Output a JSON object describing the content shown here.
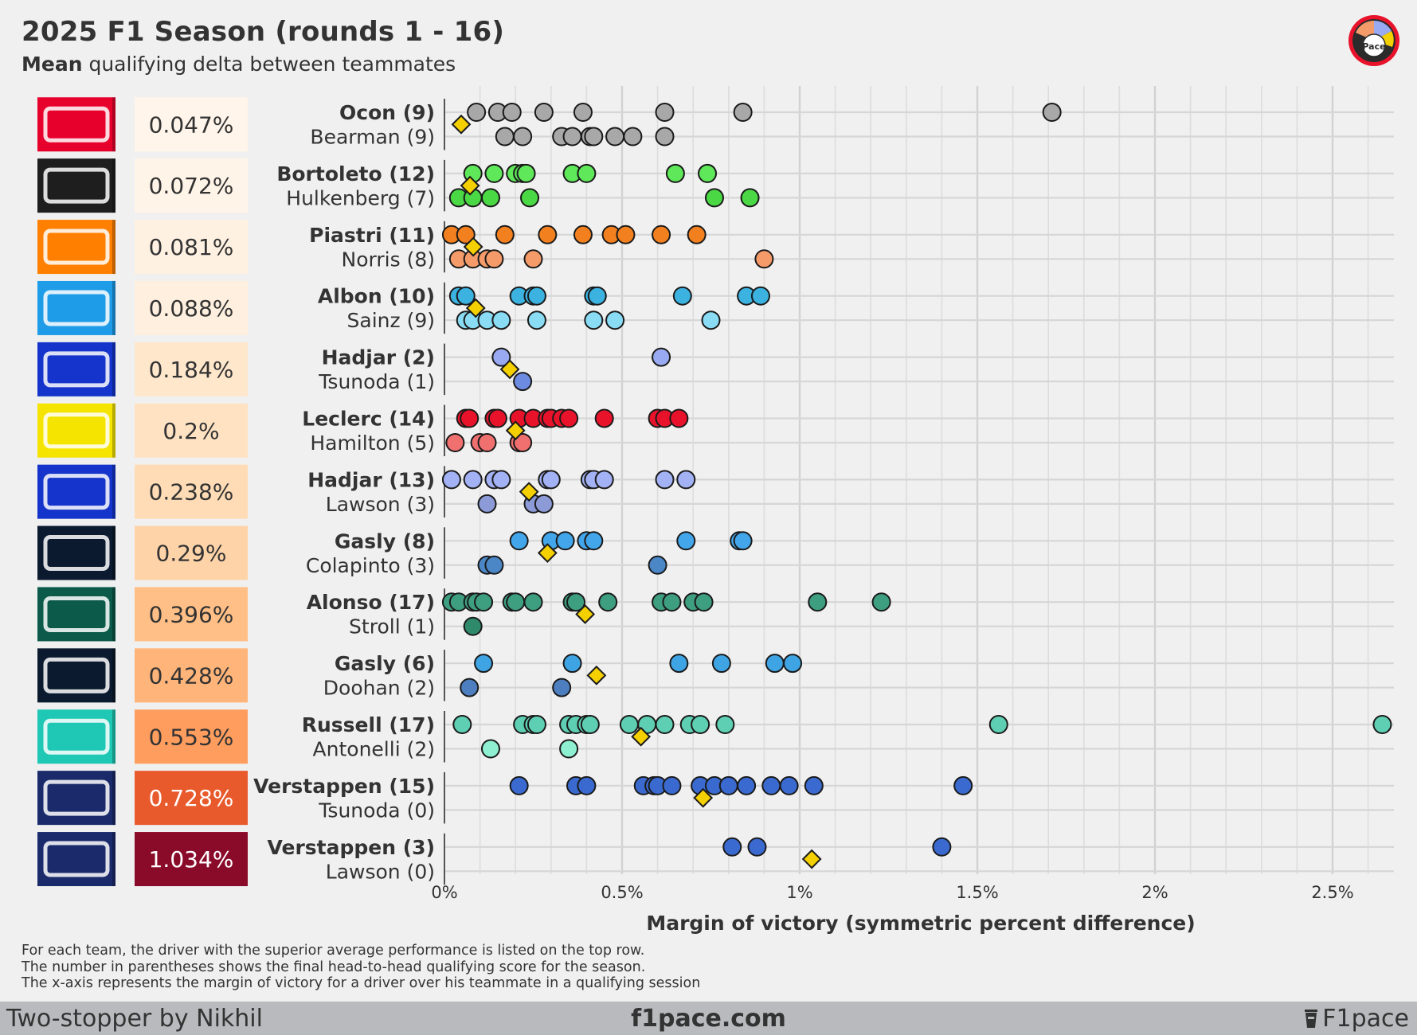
{
  "header": {
    "title": "2025 F1 Season (rounds 1 - 16)",
    "subtitle_bold": "Mean",
    "subtitle_rest": "qualifying delta between teammates"
  },
  "logo_badge": {
    "text": "Pace",
    "icon": "f1pace-logo-icon"
  },
  "footnotes": [
    "For each team, the driver with the superior average performance is listed on the top row.",
    "The number in parentheses shows the final head-to-head qualifying score for the season.",
    "The x-axis represents the margin of victory for a driver over his teammate in a qualifying session"
  ],
  "footer": {
    "left": "Two-stopper by Nikhil",
    "center": "f1pace.com",
    "right": "F1pace"
  },
  "chart_data": {
    "type": "scatter",
    "title": "2025 F1 Season (rounds 1 - 16)",
    "subtitle": "Mean qualifying delta between teammates",
    "xlabel": "Margin of victory (symmetric percent difference)",
    "xlim": [
      0,
      2.68
    ],
    "xticks": [
      0,
      0.5,
      1,
      1.5,
      2,
      2.5
    ],
    "xtick_labels": [
      "0%",
      "0.5%",
      "1%",
      "1.5%",
      "2%",
      "2.5%"
    ],
    "grid": true,
    "mean_marker": "diamond",
    "mean_color": "#f5d000",
    "pairs": [
      {
        "team": "Haas",
        "logo": "haas-logo-icon",
        "logo_bg": "#e8002d",
        "mean_label": "0.047%",
        "mean": 0.047,
        "badge_color": "#fff5ea",
        "badge_text": "#333333",
        "top": {
          "label": "Ocon (9)",
          "color": "#a8a8a8",
          "values": [
            0.09,
            0.15,
            0.19,
            0.28,
            0.39,
            0.62,
            0.84,
            1.71
          ]
        },
        "bottom": {
          "label": "Bearman (9)",
          "color": "#a8a8a8",
          "values": [
            0.17,
            0.22,
            0.33,
            0.36,
            0.41,
            0.42,
            0.48,
            0.53,
            0.62
          ]
        }
      },
      {
        "team": "Sauber",
        "logo": "sauber-logo-icon",
        "logo_bg": "#1e1e1e",
        "mean_label": "0.072%",
        "mean": 0.072,
        "badge_color": "#fff4e8",
        "badge_text": "#333333",
        "top": {
          "label": "Bortoleto (12)",
          "color": "#5fe85a",
          "values": [
            0.08,
            0.14,
            0.2,
            0.22,
            0.23,
            0.36,
            0.4,
            0.65,
            0.74
          ]
        },
        "bottom": {
          "label": "Hulkenberg (7)",
          "color": "#4ad845",
          "values": [
            0.04,
            0.08,
            0.13,
            0.24,
            0.76,
            0.86
          ]
        }
      },
      {
        "team": "McLaren",
        "logo": "mclaren-logo-icon",
        "logo_bg": "#ff8000",
        "mean_label": "0.081%",
        "mean": 0.081,
        "badge_color": "#fff1e2",
        "badge_text": "#333333",
        "top": {
          "label": "Piastri (11)",
          "color": "#f2801e",
          "values": [
            0.02,
            0.06,
            0.17,
            0.29,
            0.39,
            0.47,
            0.51,
            0.61,
            0.71
          ]
        },
        "bottom": {
          "label": "Norris (8)",
          "color": "#f59b6a",
          "values": [
            0.04,
            0.08,
            0.12,
            0.14,
            0.25,
            0.9
          ]
        }
      },
      {
        "team": "Williams",
        "logo": "williams-logo-icon",
        "logo_bg": "#1e9ce8",
        "mean_label": "0.088%",
        "mean": 0.088,
        "badge_color": "#ffefde",
        "badge_text": "#333333",
        "top": {
          "label": "Albon (10)",
          "color": "#3bb2e0",
          "values": [
            0.04,
            0.06,
            0.21,
            0.25,
            0.26,
            0.42,
            0.43,
            0.67,
            0.85,
            0.89
          ]
        },
        "bottom": {
          "label": "Sainz (9)",
          "color": "#8adcf5",
          "values": [
            0.06,
            0.08,
            0.12,
            0.16,
            0.26,
            0.42,
            0.48,
            0.75
          ]
        }
      },
      {
        "team": "Racing Bulls",
        "logo": "racing-bulls-logo-icon",
        "logo_bg": "#1434cb",
        "mean_label": "0.184%",
        "mean": 0.184,
        "badge_color": "#ffe7cc",
        "badge_text": "#333333",
        "top": {
          "label": "Hadjar (2)",
          "color": "#9aaaf2",
          "values": [
            0.16,
            0.61
          ]
        },
        "bottom": {
          "label": "Tsunoda (1)",
          "color": "#6d8be0",
          "values": [
            0.22
          ]
        }
      },
      {
        "team": "Ferrari",
        "logo": "ferrari-logo-icon",
        "logo_bg": "#f5e400",
        "mean_label": "0.2%",
        "mean": 0.2,
        "badge_color": "#ffe2c2",
        "badge_text": "#333333",
        "top": {
          "label": "Leclerc (14)",
          "color": "#e8132b",
          "values": [
            0.06,
            0.07,
            0.14,
            0.15,
            0.21,
            0.25,
            0.29,
            0.3,
            0.33,
            0.35,
            0.45,
            0.6,
            0.62,
            0.66
          ]
        },
        "bottom": {
          "label": "Hamilton (5)",
          "color": "#f07070",
          "values": [
            0.03,
            0.1,
            0.12,
            0.21,
            0.22
          ]
        }
      },
      {
        "team": "Racing Bulls",
        "logo": "racing-bulls-logo-icon",
        "logo_bg": "#1434cb",
        "mean_label": "0.238%",
        "mean": 0.238,
        "badge_color": "#ffdcb5",
        "badge_text": "#333333",
        "top": {
          "label": "Hadjar (13)",
          "color": "#a3b2f5",
          "values": [
            0.02,
            0.08,
            0.14,
            0.16,
            0.29,
            0.3,
            0.41,
            0.42,
            0.45,
            0.62,
            0.68
          ]
        },
        "bottom": {
          "label": "Lawson (3)",
          "color": "#8c9ad8",
          "values": [
            0.12,
            0.25,
            0.28
          ]
        }
      },
      {
        "team": "Alpine",
        "logo": "alpine-logo-icon",
        "logo_bg": "#0b1a2e",
        "mean_label": "0.29%",
        "mean": 0.29,
        "badge_color": "#ffd3a8",
        "badge_text": "#333333",
        "top": {
          "label": "Gasly (8)",
          "color": "#43a6ea",
          "values": [
            0.21,
            0.3,
            0.34,
            0.4,
            0.42,
            0.68,
            0.83,
            0.84
          ]
        },
        "bottom": {
          "label": "Colapinto (3)",
          "color": "#4b86c7",
          "values": [
            0.12,
            0.14,
            0.6
          ]
        }
      },
      {
        "team": "Aston Martin",
        "logo": "aston-martin-logo-icon",
        "logo_bg": "#0b5a4a",
        "mean_label": "0.396%",
        "mean": 0.396,
        "badge_color": "#ffbf86",
        "badge_text": "#333333",
        "top": {
          "label": "Alonso (17)",
          "color": "#3e9e80",
          "values": [
            0.02,
            0.04,
            0.08,
            0.09,
            0.11,
            0.19,
            0.2,
            0.25,
            0.36,
            0.37,
            0.46,
            0.61,
            0.64,
            0.7,
            0.73,
            1.05,
            1.23
          ]
        },
        "bottom": {
          "label": "Stroll (1)",
          "color": "#2e8a6a",
          "values": [
            0.08
          ]
        }
      },
      {
        "team": "Alpine",
        "logo": "alpine-logo-icon",
        "logo_bg": "#0b1a2e",
        "mean_label": "0.428%",
        "mean": 0.428,
        "badge_color": "#ffb47a",
        "badge_text": "#333333",
        "top": {
          "label": "Gasly (6)",
          "color": "#3fa4e4",
          "values": [
            0.11,
            0.36,
            0.66,
            0.78,
            0.93,
            0.98
          ]
        },
        "bottom": {
          "label": "Doohan (2)",
          "color": "#4d7fc0",
          "values": [
            0.07,
            0.33
          ]
        }
      },
      {
        "team": "Mercedes",
        "logo": "mercedes-logo-icon",
        "logo_bg": "#1ec8b4",
        "mean_label": "0.553%",
        "mean": 0.553,
        "badge_color": "#ff9d5e",
        "badge_text": "#333333",
        "top": {
          "label": "Russell (17)",
          "color": "#5fcfb3",
          "values": [
            0.05,
            0.22,
            0.25,
            0.26,
            0.35,
            0.37,
            0.4,
            0.41,
            0.52,
            0.57,
            0.62,
            0.69,
            0.72,
            0.79,
            1.56,
            2.64
          ]
        },
        "bottom": {
          "label": "Antonelli (2)",
          "color": "#8ef0d0",
          "values": [
            0.13,
            0.35
          ]
        }
      },
      {
        "team": "Red Bull",
        "logo": "red-bull-logo-icon",
        "logo_bg": "#1b2a6b",
        "mean_label": "0.728%",
        "mean": 0.728,
        "badge_color": "#e85a2c",
        "badge_text": "#ffffff",
        "top": {
          "label": "Verstappen (15)",
          "color": "#3a6ad0",
          "values": [
            0.21,
            0.37,
            0.4,
            0.56,
            0.59,
            0.6,
            0.64,
            0.72,
            0.76,
            0.8,
            0.85,
            0.92,
            0.97,
            1.04,
            1.46
          ]
        },
        "bottom": {
          "label": "Tsunoda (0)",
          "color": "#3a6ad0",
          "values": []
        }
      },
      {
        "team": "Red Bull",
        "logo": "red-bull-logo-icon",
        "logo_bg": "#1b2a6b",
        "mean_label": "1.034%",
        "mean": 1.034,
        "badge_color": "#8a0a2a",
        "badge_text": "#ffffff",
        "top": {
          "label": "Verstappen (3)",
          "color": "#3a6ad0",
          "values": [
            0.81,
            0.88,
            1.4
          ]
        },
        "bottom": {
          "label": "Lawson (0)",
          "color": "#3a6ad0",
          "values": []
        }
      }
    ]
  }
}
